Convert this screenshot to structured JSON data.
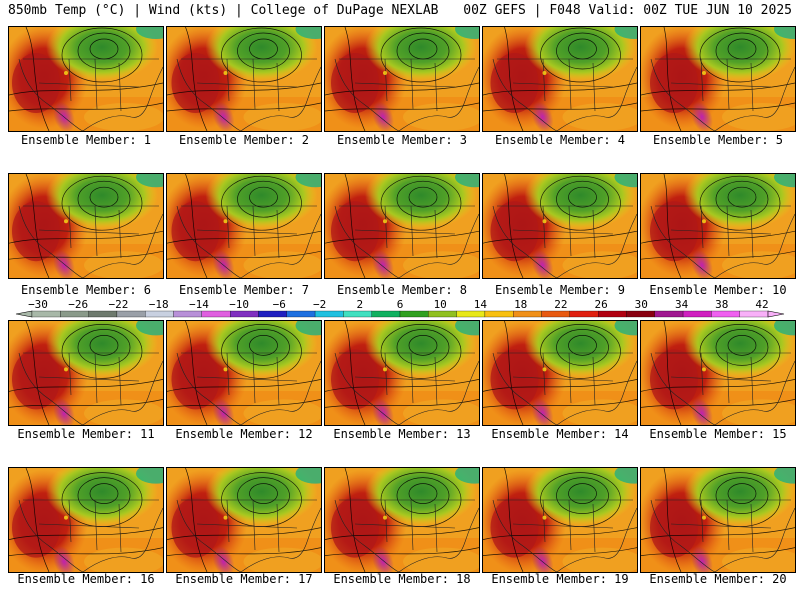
{
  "header": {
    "left": "850mb Temp (°C) | Wind (kts) | College of DuPage NEXLAB",
    "right": "00Z GEFS | F048 Valid: 00Z TUE JUN 10 2025"
  },
  "panels": [
    {
      "label": "Ensemble Member: 1"
    },
    {
      "label": "Ensemble Member: 2"
    },
    {
      "label": "Ensemble Member: 3"
    },
    {
      "label": "Ensemble Member: 4"
    },
    {
      "label": "Ensemble Member: 5"
    },
    {
      "label": "Ensemble Member: 6"
    },
    {
      "label": "Ensemble Member: 7"
    },
    {
      "label": "Ensemble Member: 8"
    },
    {
      "label": "Ensemble Member: 9"
    },
    {
      "label": "Ensemble Member: 10"
    },
    {
      "label": "Ensemble Member: 11"
    },
    {
      "label": "Ensemble Member: 12"
    },
    {
      "label": "Ensemble Member: 13"
    },
    {
      "label": "Ensemble Member: 14"
    },
    {
      "label": "Ensemble Member: 15"
    },
    {
      "label": "Ensemble Member: 16"
    },
    {
      "label": "Ensemble Member: 17"
    },
    {
      "label": "Ensemble Member: 18"
    },
    {
      "label": "Ensemble Member: 19"
    },
    {
      "label": "Ensemble Member: 20"
    }
  ],
  "colorbar": {
    "ticks": [
      "−30",
      "−26",
      "−22",
      "−18",
      "−14",
      "−10",
      "−6",
      "−2",
      "2",
      "6",
      "10",
      "14",
      "18",
      "22",
      "26",
      "30",
      "34",
      "38",
      "42"
    ],
    "colors": [
      "#a8b8a8",
      "#8a9a8a",
      "#6e7a6e",
      "#9aa0a8",
      "#c8d0e0",
      "#b890d8",
      "#e060e0",
      "#8030c0",
      "#2020c0",
      "#1e70e0",
      "#20c0e0",
      "#40e0c0",
      "#10b060",
      "#30a020",
      "#90c020",
      "#e8e818",
      "#f8c010",
      "#f09018",
      "#e85a10",
      "#e02010",
      "#b00010",
      "#880010",
      "#a01890",
      "#d020c0",
      "#f060f0",
      "#f8b0f8"
    ]
  }
}
